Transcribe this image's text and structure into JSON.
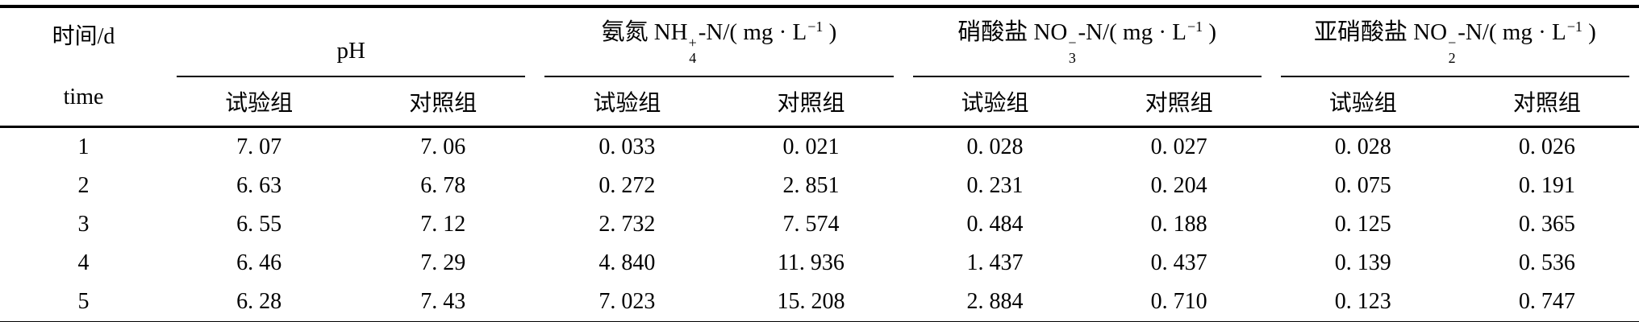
{
  "page": {
    "background": "#ffffff",
    "text_color": "#000000",
    "rule_color": "#000000"
  },
  "table": {
    "kind": "three-line academic table",
    "time_header": {
      "line1": "时间/d",
      "line2": "time"
    },
    "groups": [
      {
        "id": "ph",
        "title_parts": [
          {
            "text": "pH"
          }
        ],
        "subheaders": [
          "试验组",
          "对照组"
        ]
      },
      {
        "id": "ammonia-nitrogen",
        "title_parts": [
          {
            "text": "氨氮 NH"
          },
          {
            "sup": "+",
            "sub": "4"
          },
          {
            "text": "-N/( mg · L"
          },
          {
            "sup": "−1"
          },
          {
            "text": " )"
          }
        ],
        "subheaders": [
          "试验组",
          "对照组"
        ]
      },
      {
        "id": "nitrate",
        "title_parts": [
          {
            "text": "硝酸盐 NO"
          },
          {
            "sup": "−",
            "sub": "3"
          },
          {
            "text": "-N/( mg · L"
          },
          {
            "sup": "−1"
          },
          {
            "text": " )"
          }
        ],
        "subheaders": [
          "试验组",
          "对照组"
        ]
      },
      {
        "id": "nitrite",
        "title_parts": [
          {
            "text": "亚硝酸盐 NO"
          },
          {
            "sup": "−",
            "sub": "2"
          },
          {
            "text": "-N/( mg · L"
          },
          {
            "sup": "−1"
          },
          {
            "text": " )"
          }
        ],
        "subheaders": [
          "试验组",
          "对照组"
        ]
      }
    ],
    "rows": [
      {
        "time": "1",
        "values": [
          "7. 07",
          "7. 06",
          "0. 033",
          "0. 021",
          "0. 028",
          "0. 027",
          "0. 028",
          "0. 026"
        ]
      },
      {
        "time": "2",
        "values": [
          "6. 63",
          "6. 78",
          "0. 272",
          "2. 851",
          "0. 231",
          "0. 204",
          "0. 075",
          "0. 191"
        ]
      },
      {
        "time": "3",
        "values": [
          "6. 55",
          "7. 12",
          "2. 732",
          "7. 574",
          "0. 484",
          "0. 188",
          "0. 125",
          "0. 365"
        ]
      },
      {
        "time": "4",
        "values": [
          "6. 46",
          "7. 29",
          "4. 840",
          "11. 936",
          "1. 437",
          "0. 437",
          "0. 139",
          "0. 536"
        ]
      },
      {
        "time": "5",
        "values": [
          "6. 28",
          "7. 43",
          "7. 023",
          "15. 208",
          "2. 884",
          "0. 710",
          "0. 123",
          "0. 747"
        ]
      }
    ]
  }
}
